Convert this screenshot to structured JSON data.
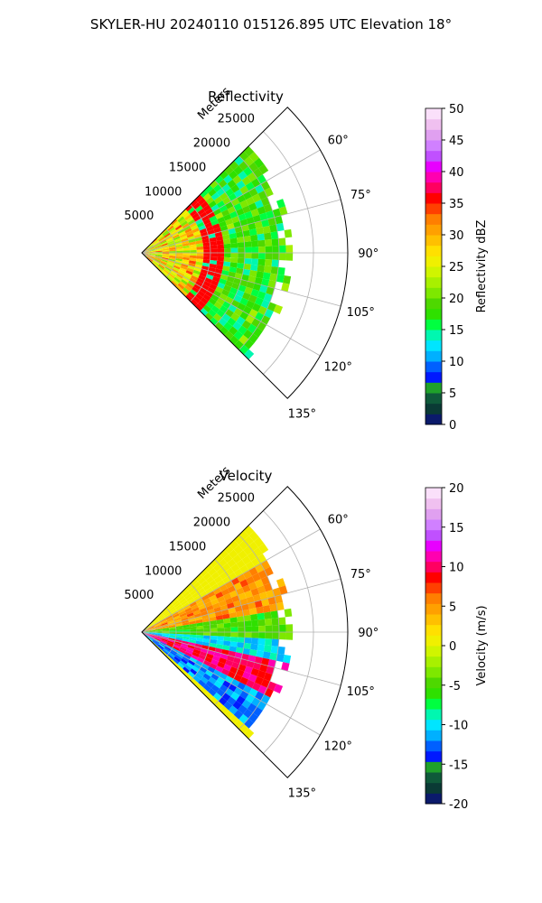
{
  "figure": {
    "title": "SKYLER-HU  20240110  015126.895 UTC Elevation 18°"
  },
  "chart_data": [
    {
      "type": "heatmap",
      "subtype": "polar-sector",
      "title": "Reflectivity",
      "r_axis": {
        "label": "Meters",
        "range": [
          0,
          30000
        ],
        "tick_labels": [
          "5000",
          "10000",
          "15000",
          "20000",
          "25000"
        ],
        "ticks": [
          5000,
          10000,
          15000,
          20000,
          25000
        ]
      },
      "theta_axis": {
        "range_deg": [
          45,
          135
        ],
        "tick_labels": [
          "60°",
          "75°",
          "90°",
          "105°",
          "120°",
          "135°"
        ],
        "ticks_deg": [
          60,
          75,
          90,
          105,
          120,
          135
        ]
      },
      "grid": true,
      "colorbar": {
        "label": "Reflectivity dBZ",
        "range": [
          0,
          50
        ],
        "tick_labels": [
          "0",
          "5",
          "10",
          "15",
          "20",
          "25",
          "30",
          "35",
          "40",
          "45",
          "50"
        ],
        "ticks": [
          0,
          5,
          10,
          15,
          20,
          25,
          30,
          35,
          40,
          45,
          50
        ],
        "colors": [
          "#0b1a6b",
          "#0a3a35",
          "#0f5a3a",
          "#1fa12a",
          "#0019ff",
          "#0060ff",
          "#00b0ff",
          "#00e5ff",
          "#00f7b0",
          "#00ff40",
          "#2fe000",
          "#4ed800",
          "#7ee800",
          "#a8f000",
          "#d0f500",
          "#f0f000",
          "#ffe000",
          "#ffc000",
          "#ffa000",
          "#ff7f00",
          "#ff4000",
          "#ff0000",
          "#ff0060",
          "#ff00b0",
          "#e800ff",
          "#c050ff",
          "#d080ff",
          "#e0a0f0",
          "#f0c0f0",
          "#fae0fa"
        ]
      },
      "data_summary": {
        "azimuth_span_deg": [
          45,
          135
        ],
        "echo_extent_m": [
          0,
          22000
        ],
        "high_band": {
          "value_dbz": 36,
          "range_m": [
            9000,
            11000
          ],
          "color": "#ff1a3c"
        },
        "core_value_dbz": 27,
        "outer_value_dbz": 18
      }
    },
    {
      "type": "heatmap",
      "subtype": "polar-sector",
      "title": "Velocity",
      "r_axis": {
        "label": "Meters",
        "range": [
          0,
          30000
        ],
        "tick_labels": [
          "5000",
          "10000",
          "15000",
          "20000",
          "25000"
        ],
        "ticks": [
          5000,
          10000,
          15000,
          20000,
          25000
        ]
      },
      "theta_axis": {
        "range_deg": [
          45,
          135
        ],
        "tick_labels": [
          "60°",
          "75°",
          "90°",
          "105°",
          "120°",
          "135°"
        ],
        "ticks_deg": [
          60,
          75,
          90,
          105,
          120,
          135
        ]
      },
      "grid": true,
      "colorbar": {
        "label": "Velocity (m/s)",
        "range": [
          -20,
          20
        ],
        "tick_labels": [
          "-20",
          "-15",
          "-10",
          "-5",
          "0",
          "5",
          "10",
          "15",
          "20"
        ],
        "ticks": [
          -20,
          -15,
          -10,
          -5,
          0,
          5,
          10,
          15,
          20
        ],
        "colors": [
          "#0b1a6b",
          "#0a3a35",
          "#0f5a3a",
          "#1fa12a",
          "#0019ff",
          "#0060ff",
          "#00b0ff",
          "#00e5ff",
          "#00f7b0",
          "#00ff40",
          "#2fe000",
          "#4ed800",
          "#7ee800",
          "#a8f000",
          "#d0f500",
          "#f0f000",
          "#ffe000",
          "#ffc000",
          "#ffa000",
          "#ff7f00",
          "#ff4000",
          "#ff0000",
          "#ff0060",
          "#ff00b0",
          "#e800ff",
          "#c050ff",
          "#d080ff",
          "#e0a0f0",
          "#f0c0f0",
          "#fae0fa"
        ]
      },
      "data_summary": {
        "azimuth_span_deg": [
          45,
          135
        ],
        "echo_extent_m": [
          0,
          22000
        ],
        "bands": [
          {
            "azimuth_deg": [
              60,
              80
            ],
            "value_ms": 5
          },
          {
            "azimuth_deg": [
              80,
              92
            ],
            "value_ms": -5
          },
          {
            "azimuth_deg": [
              92,
              100
            ],
            "value_ms": -10
          },
          {
            "azimuth_deg": [
              100,
              115
            ],
            "value_ms": 10
          },
          {
            "azimuth_deg": [
              115,
              130
            ],
            "value_ms": -12
          }
        ]
      }
    }
  ]
}
